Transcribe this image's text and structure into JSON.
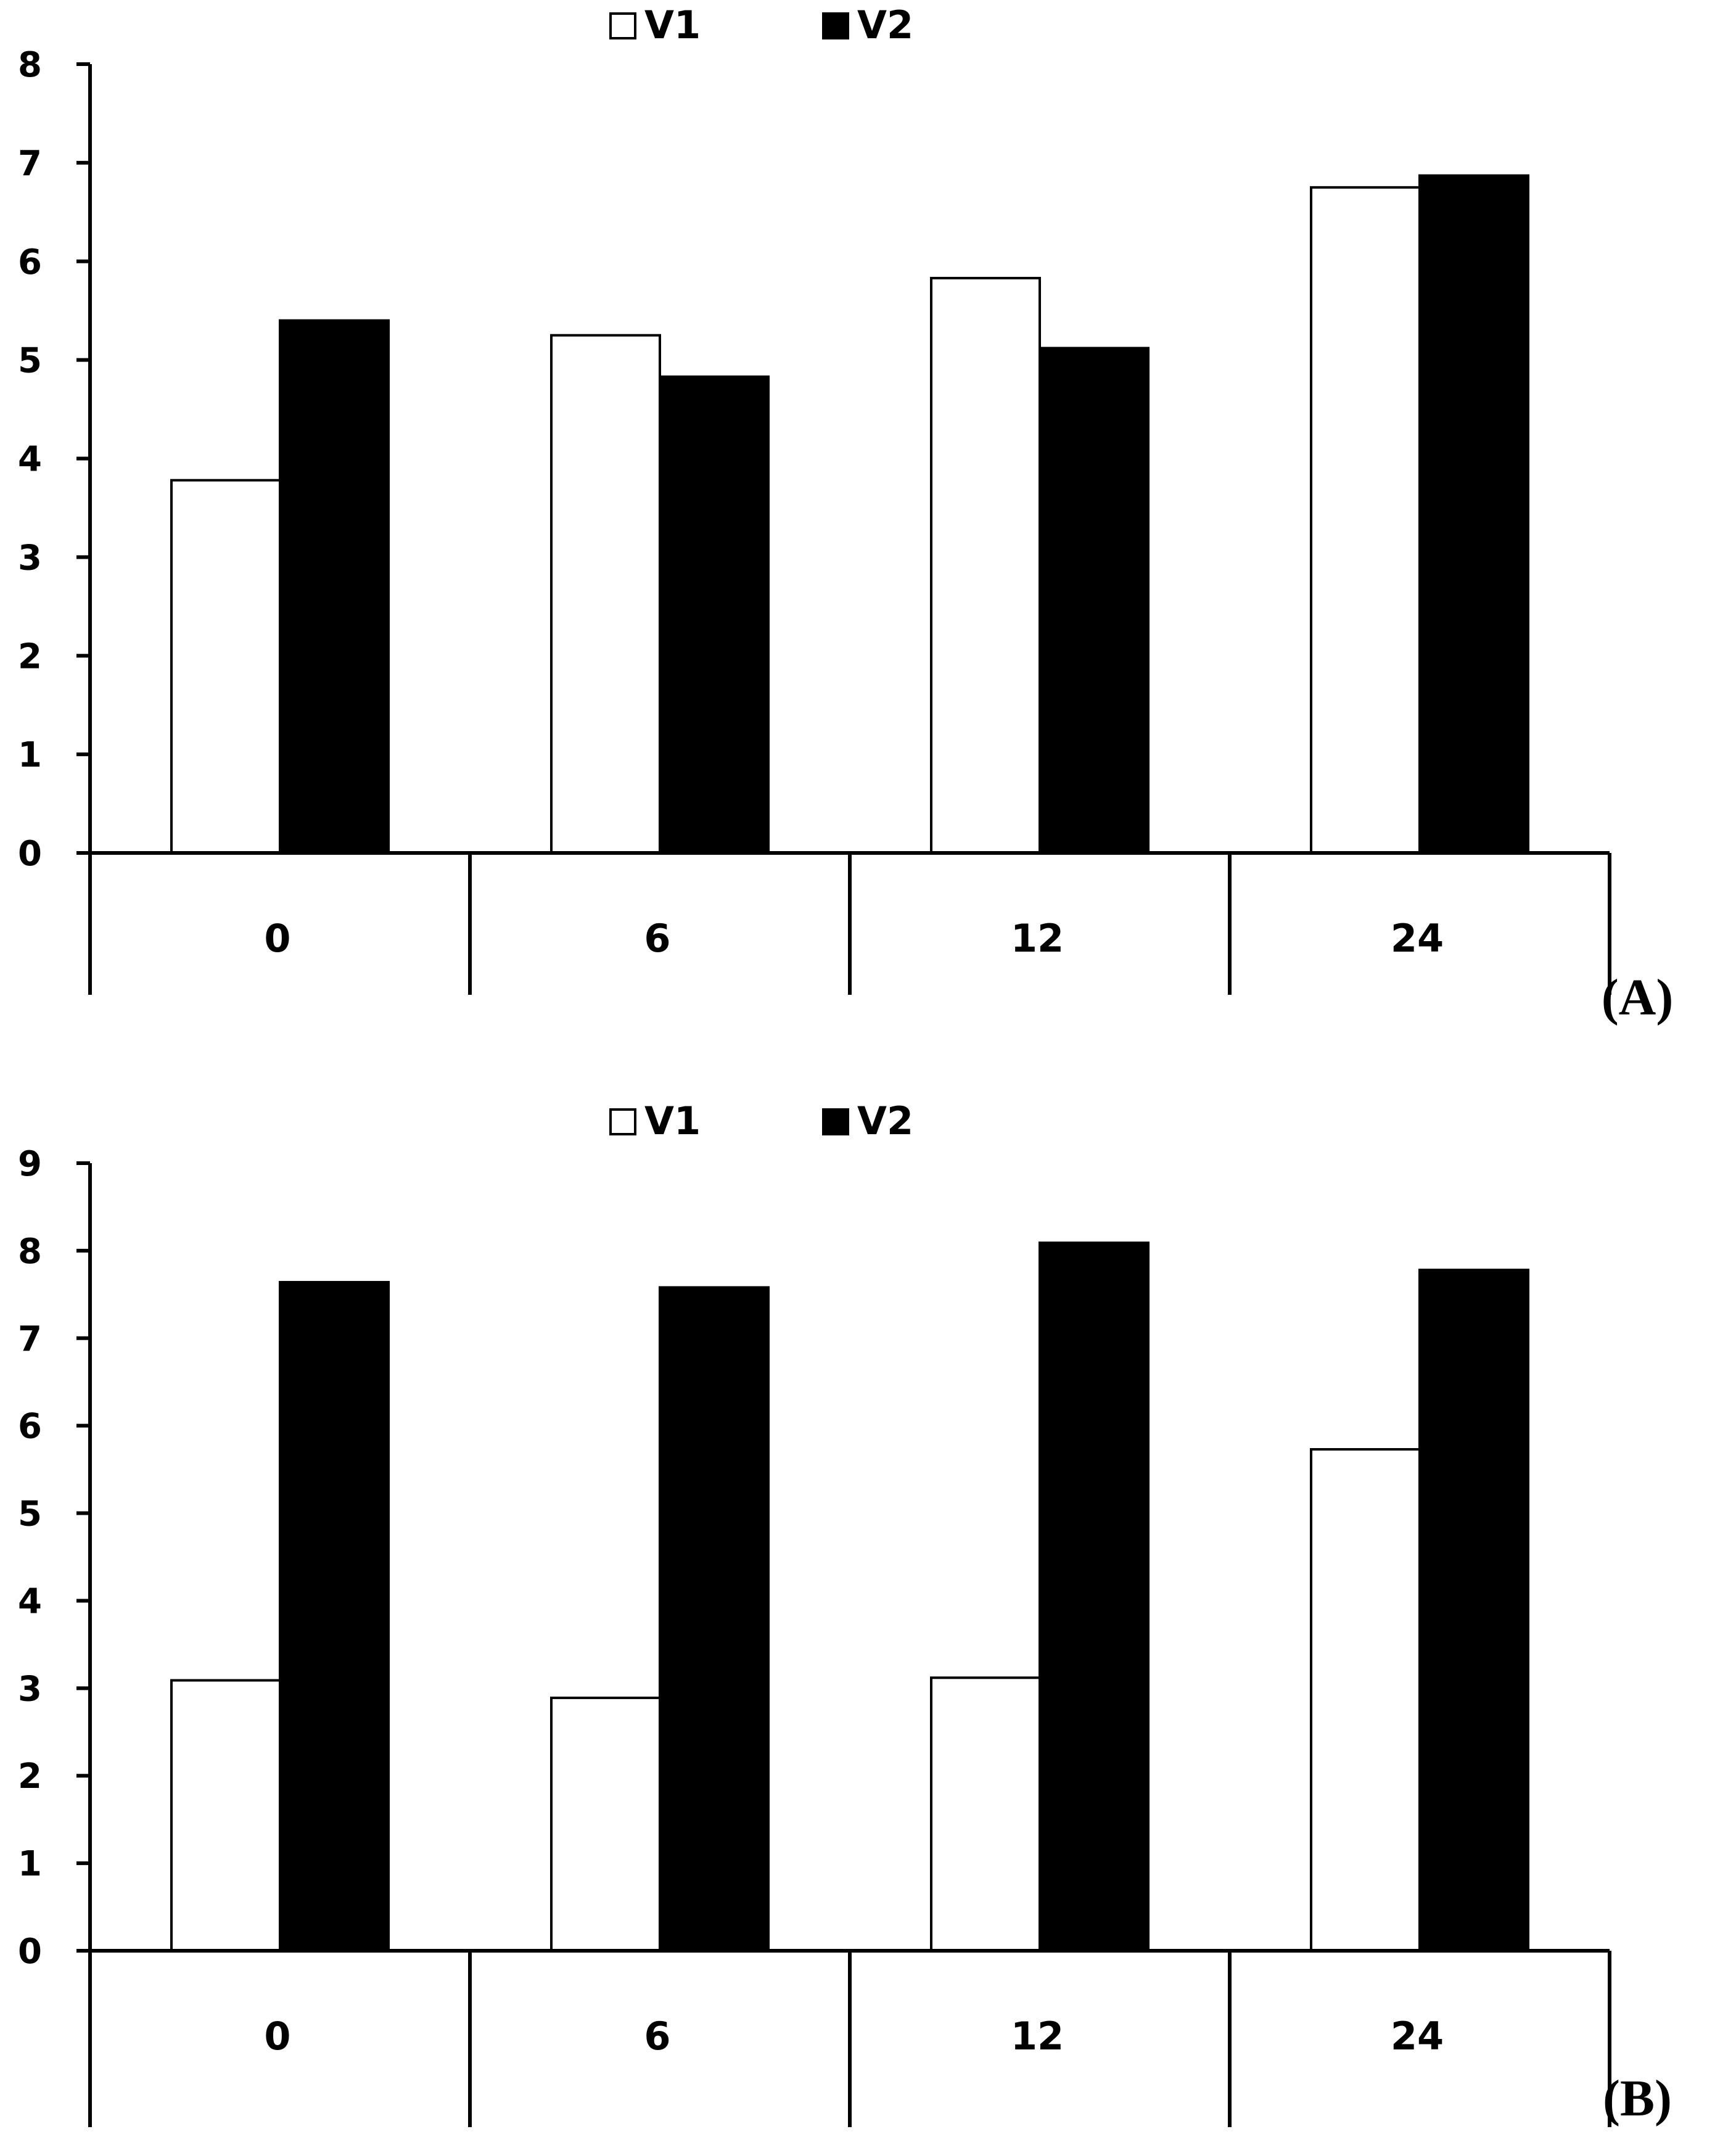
{
  "chart_data": [
    {
      "type": "bar",
      "panel_label": "(A)",
      "categories": [
        "0",
        "6",
        "12",
        "24"
      ],
      "series": [
        {
          "name": "V1",
          "color": "#ffffff",
          "values": [
            3.78,
            5.25,
            5.83,
            6.75
          ]
        },
        {
          "name": "V2",
          "color": "#000000",
          "values": [
            5.4,
            4.83,
            5.12,
            6.87
          ]
        }
      ],
      "ylim": [
        0,
        8
      ],
      "yticks": [
        "0",
        "1",
        "2",
        "3",
        "4",
        "5",
        "6",
        "7",
        "8"
      ],
      "legend": "top-center",
      "grid": false
    },
    {
      "type": "bar",
      "panel_label": "(B)",
      "categories": [
        "0",
        "6",
        "12",
        "24"
      ],
      "series": [
        {
          "name": "V1",
          "color": "#ffffff",
          "values": [
            3.09,
            2.89,
            3.12,
            5.73
          ]
        },
        {
          "name": "V2",
          "color": "#000000",
          "values": [
            7.64,
            7.58,
            8.09,
            7.78
          ]
        }
      ],
      "ylim": [
        0,
        9
      ],
      "yticks": [
        "0",
        "1",
        "2",
        "3",
        "4",
        "5",
        "6",
        "7",
        "8",
        "9"
      ],
      "legend": "top-center",
      "grid": false
    }
  ]
}
